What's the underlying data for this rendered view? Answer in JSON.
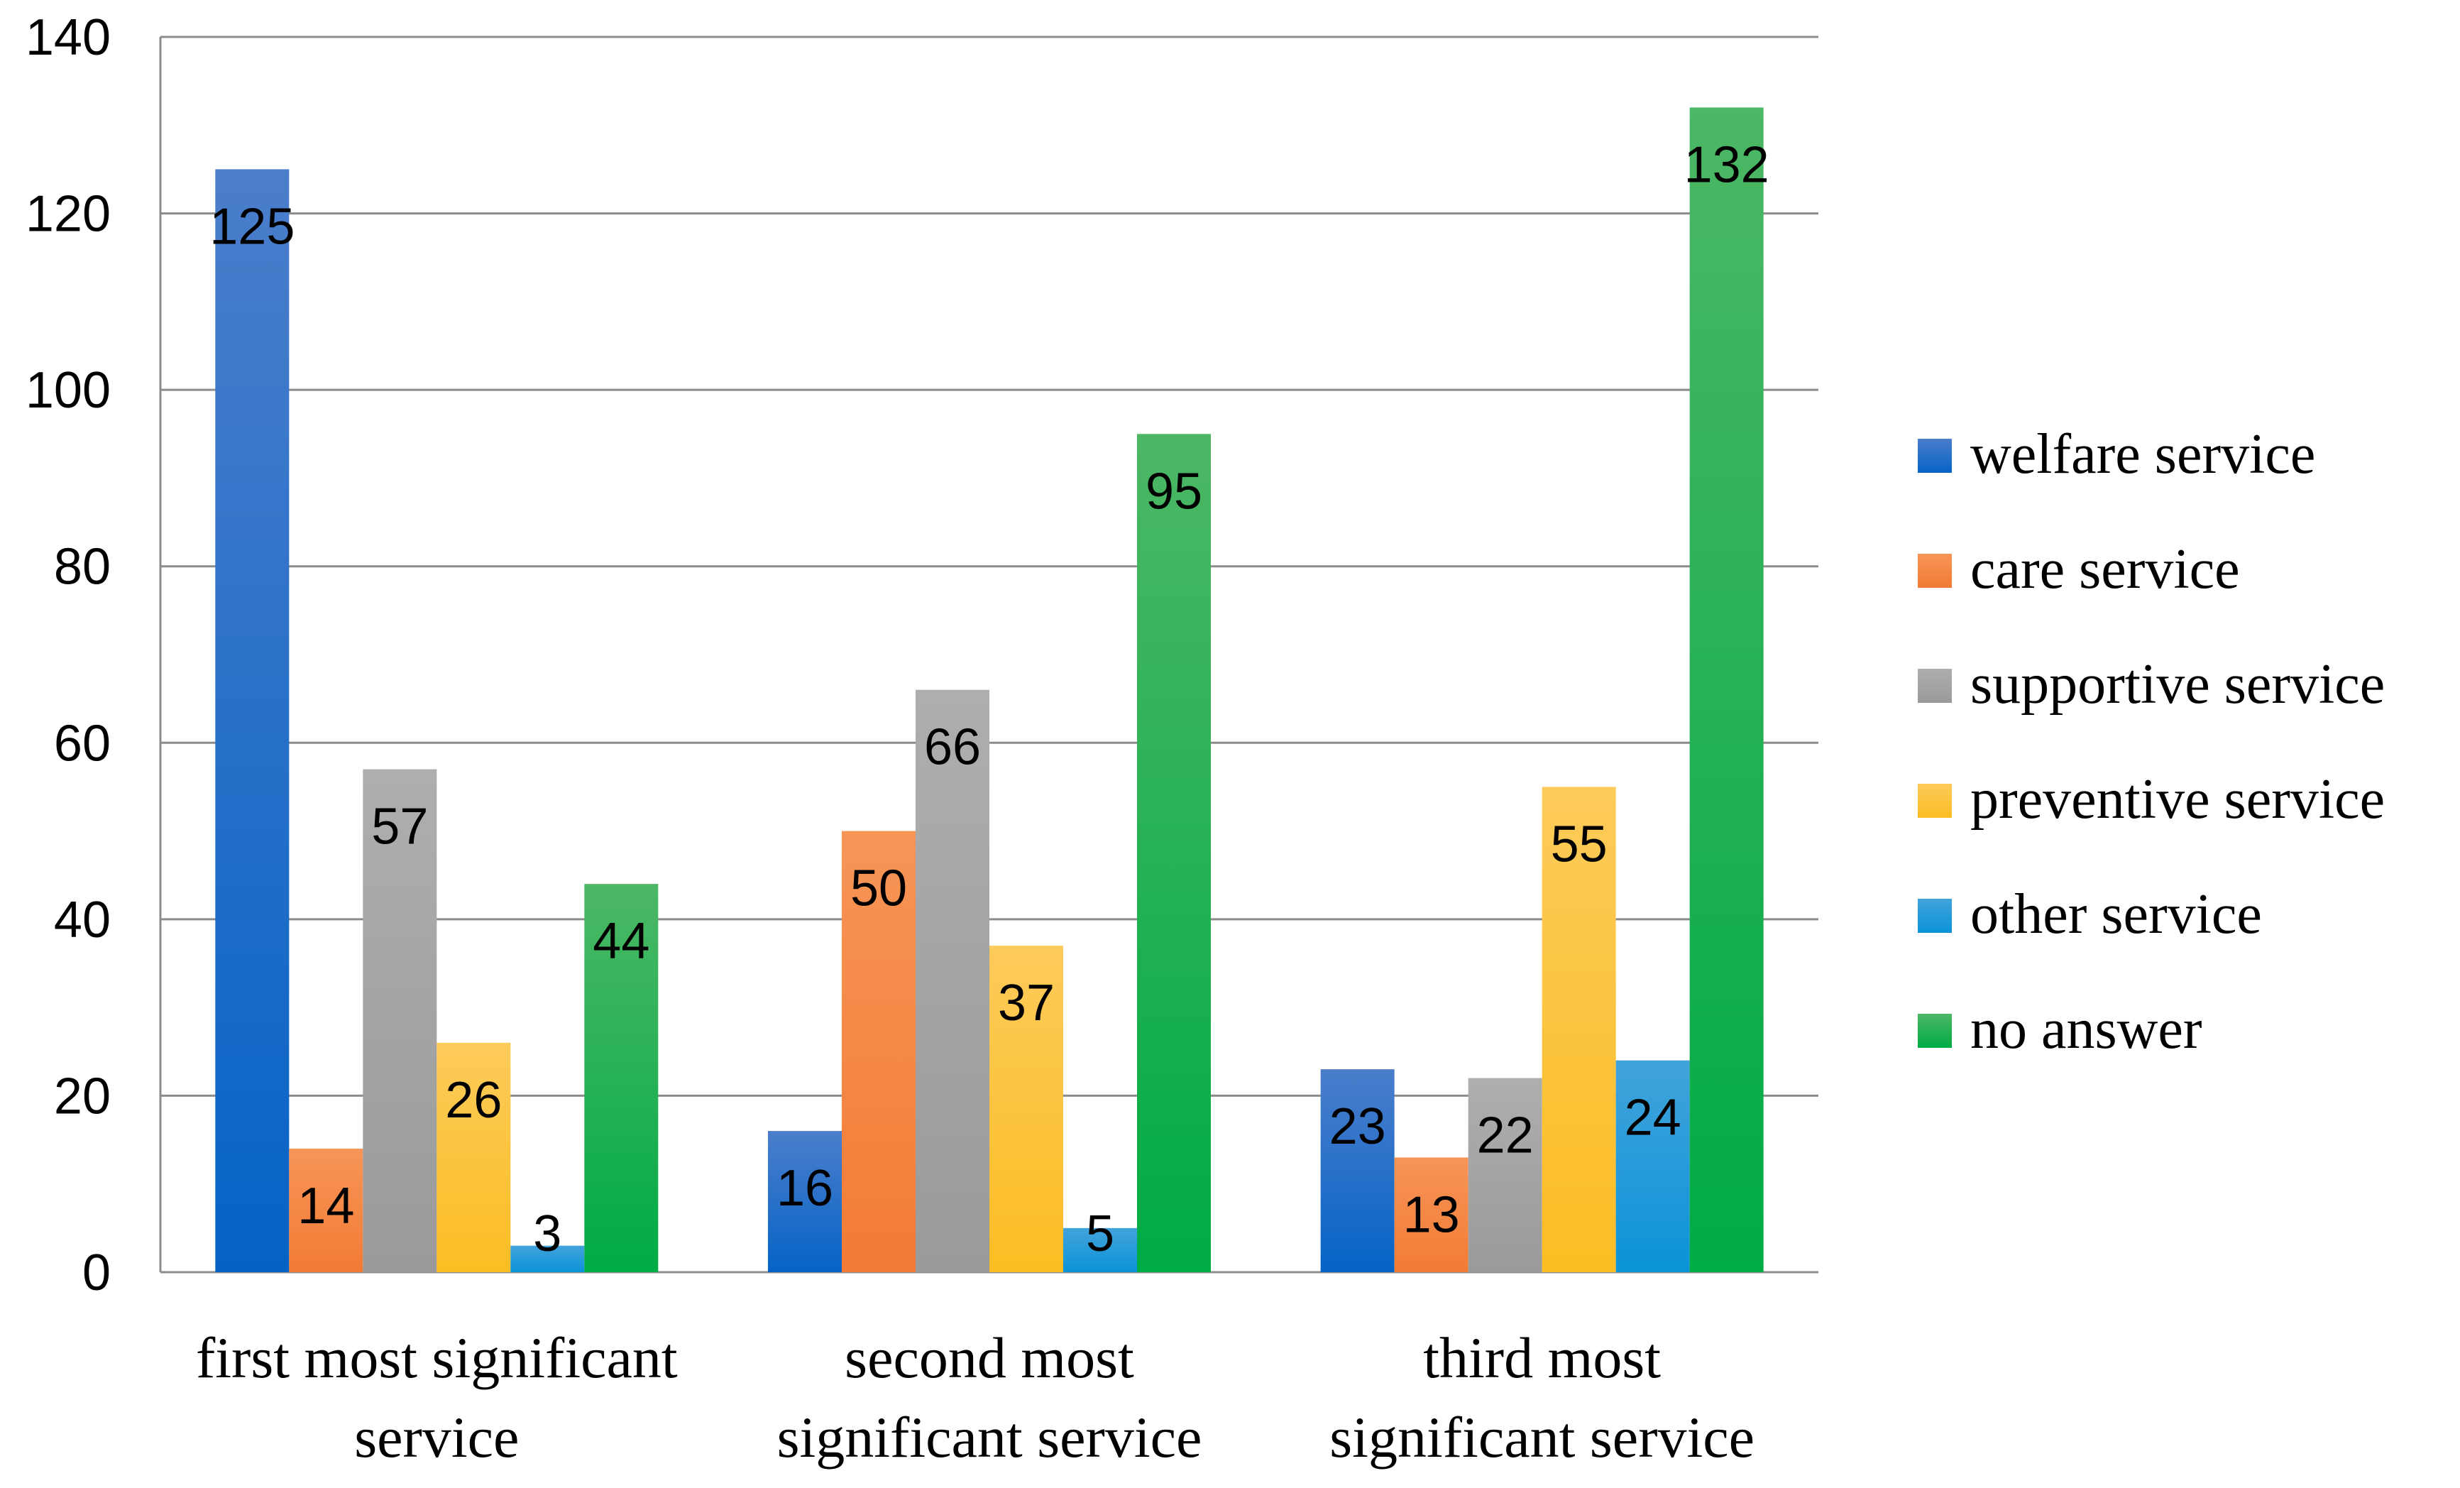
{
  "chart_data": {
    "type": "bar",
    "title": "",
    "xlabel": "",
    "ylabel": "",
    "ylim": [
      0,
      140
    ],
    "ytick_step": 20,
    "grid": true,
    "legend_position": "right",
    "categories": [
      [
        "first most significant",
        "service"
      ],
      [
        "second most",
        "significant service"
      ],
      [
        "third most",
        "significant service"
      ]
    ],
    "series": [
      {
        "name": "welfare service",
        "values": [
          125,
          16,
          23
        ],
        "color_top": "#4B7ECB",
        "color_bottom": "#0563C6"
      },
      {
        "name": "care service",
        "values": [
          14,
          50,
          13
        ],
        "color_top": "#F79557",
        "color_bottom": "#F27B35"
      },
      {
        "name": "supportive service",
        "values": [
          57,
          66,
          22
        ],
        "color_top": "#AEAEAE",
        "color_bottom": "#9A9A9A"
      },
      {
        "name": "preventive service",
        "values": [
          26,
          37,
          55
        ],
        "color_top": "#FDCB5A",
        "color_bottom": "#FBBD23"
      },
      {
        "name": "other service",
        "values": [
          3,
          5,
          24
        ],
        "color_top": "#42A3DB",
        "color_bottom": "#0B93D8"
      },
      {
        "name": "no answer",
        "values": [
          44,
          95,
          132
        ],
        "color_top": "#4CB765",
        "color_bottom": "#00AC44"
      }
    ]
  }
}
